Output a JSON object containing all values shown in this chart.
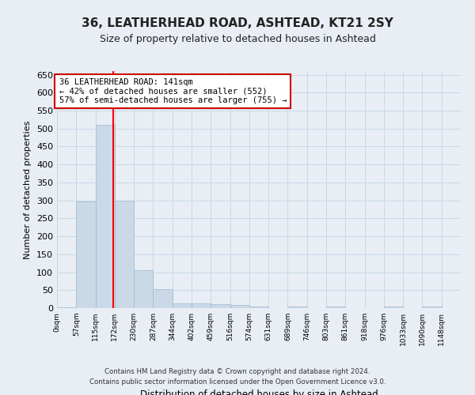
{
  "title": "36, LEATHERHEAD ROAD, ASHTEAD, KT21 2SY",
  "subtitle": "Size of property relative to detached houses in Ashtead",
  "xlabel": "Distribution of detached houses by size in Ashtead",
  "ylabel": "Number of detached properties",
  "footer_line1": "Contains HM Land Registry data © Crown copyright and database right 2024.",
  "footer_line2": "Contains public sector information licensed under the Open Government Licence v3.0.",
  "bin_labels": [
    "0sqm",
    "57sqm",
    "115sqm",
    "172sqm",
    "230sqm",
    "287sqm",
    "344sqm",
    "402sqm",
    "459sqm",
    "516sqm",
    "574sqm",
    "631sqm",
    "689sqm",
    "746sqm",
    "803sqm",
    "861sqm",
    "918sqm",
    "976sqm",
    "1033sqm",
    "1090sqm",
    "1148sqm"
  ],
  "bar_heights": [
    3,
    298,
    511,
    300,
    106,
    53,
    13,
    14,
    12,
    8,
    5,
    0,
    4,
    0,
    4,
    0,
    0,
    4,
    0,
    4,
    0
  ],
  "bar_color": "#c9d9e8",
  "bar_edge_color": "#a0b8cc",
  "grid_color": "#c8d8e8",
  "background_color": "#e8eef4",
  "red_line_x": 2.42,
  "annotation_text_line1": "36 LEATHERHEAD ROAD: 141sqm",
  "annotation_text_line2": "← 42% of detached houses are smaller (552)",
  "annotation_text_line3": "57% of semi-detached houses are larger (755) →",
  "annotation_box_color": "#ffffff",
  "annotation_box_edge": "#cc0000",
  "ylim": [
    0,
    660
  ],
  "yticks": [
    0,
    50,
    100,
    150,
    200,
    250,
    300,
    350,
    400,
    450,
    500,
    550,
    600,
    650
  ]
}
